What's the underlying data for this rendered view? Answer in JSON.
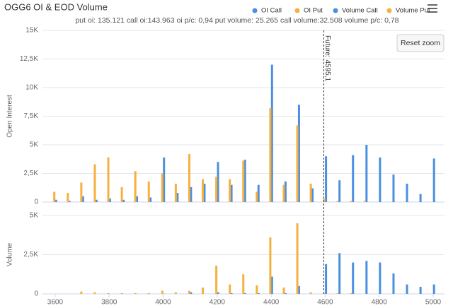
{
  "chart_data": {
    "type": "bar",
    "title": "OGG6 OI & EOD Volume",
    "subtitle": "put oi: 135.121 call oi:143.963 oi p/c: 0,94 put volume: 25.265 call volume:32.508 volume p/c: 0,78",
    "reset_zoom": "Reset zoom",
    "legend": "top-right",
    "grid": true,
    "ylabel": "Open Interest",
    "y2label": "Volume",
    "x": [
      3600,
      3650,
      3700,
      3750,
      3800,
      3850,
      3900,
      3950,
      4000,
      4050,
      4100,
      4150,
      4200,
      4250,
      4300,
      4350,
      4400,
      4450,
      4500,
      4550,
      4600,
      4650,
      4700,
      4750,
      4800,
      4850,
      4900,
      4950,
      5000
    ],
    "xlim": [
      3553,
      5042
    ],
    "xticks": [
      3600,
      3800,
      4000,
      4200,
      4400,
      4600,
      4800,
      5000
    ],
    "ylim": [
      0,
      15000
    ],
    "yticks": [
      0,
      {
        "value": 2500,
        "label": "2,5K"
      },
      {
        "value": 5000,
        "label": "5K"
      },
      {
        "value": 7500,
        "label": "7,5K"
      },
      {
        "value": 10000,
        "label": "10K"
      },
      {
        "value": 12500,
        "label": "12,5K"
      },
      {
        "value": 15000,
        "label": "15K"
      }
    ],
    "y2lim": [
      0,
      5000
    ],
    "y2ticks": [
      0,
      {
        "value": 2500,
        "label": "2,5K"
      },
      {
        "value": 5000,
        "label": "5K"
      }
    ],
    "annotations": [
      {
        "x": 4595.1,
        "text": "Future: 4595,1"
      }
    ],
    "series": [
      {
        "name": "OI Call",
        "color": "#4a8fe0",
        "values": [
          200,
          100,
          500,
          200,
          300,
          200,
          500,
          400,
          3900,
          800,
          1300,
          1600,
          3500,
          1500,
          3700,
          1500,
          12000,
          1800,
          8500,
          1200,
          4000,
          1900,
          4100,
          5000,
          3900,
          2400,
          1600,
          700,
          3800
        ]
      },
      {
        "name": "OI Put",
        "color": "#f5b040",
        "values": [
          900,
          800,
          1700,
          3300,
          3900,
          1300,
          2700,
          1800,
          2500,
          1600,
          4200,
          2000,
          2200,
          2000,
          3600,
          900,
          8200,
          1500,
          6700,
          1600,
          300,
          100,
          100,
          100,
          0,
          0,
          0,
          0,
          0
        ]
      },
      {
        "name": "Volume Call",
        "color": "#4a8fe0",
        "axis": "y2",
        "values": [
          0,
          0,
          0,
          0,
          0,
          0,
          0,
          0,
          0,
          0,
          100,
          0,
          100,
          50,
          50,
          50,
          1100,
          50,
          500,
          0,
          1900,
          2600,
          2000,
          2100,
          2000,
          1300,
          600,
          450,
          600
        ]
      },
      {
        "name": "Volume Put",
        "color": "#f5b040",
        "axis": "y2",
        "values": [
          0,
          0,
          150,
          100,
          50,
          50,
          50,
          50,
          200,
          100,
          200,
          400,
          1800,
          600,
          1250,
          550,
          3600,
          400,
          4500,
          100,
          50,
          50,
          50,
          0,
          0,
          0,
          0,
          0,
          0
        ]
      }
    ]
  }
}
